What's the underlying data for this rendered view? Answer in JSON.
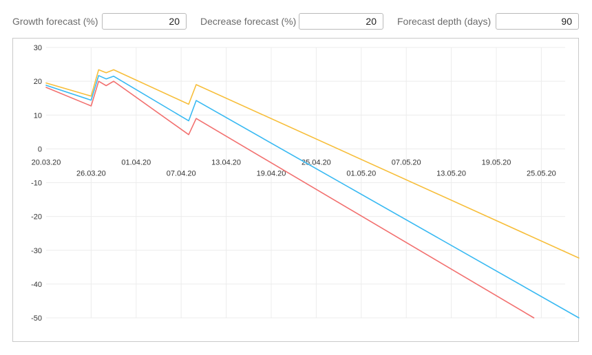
{
  "controls": {
    "growth": {
      "label": "Growth forecast (%)",
      "value": "20"
    },
    "decrease": {
      "label": "Decrease forecast (%)",
      "value": "20"
    },
    "depth": {
      "label": "Forecast depth (days)",
      "value": "90"
    }
  },
  "chart_data": {
    "type": "line",
    "title": "",
    "xlabel": "",
    "ylabel": "",
    "ylim": [
      -50,
      30
    ],
    "y_ticks": [
      30,
      20,
      10,
      0,
      -10,
      -20,
      -30,
      -40,
      -50
    ],
    "x_tick_labels": [
      "20.03.20",
      "26.03.20",
      "01.04.20",
      "07.04.20",
      "13.04.20",
      "19.04.20",
      "25.04.20",
      "01.05.20",
      "07.05.20",
      "13.05.20",
      "19.05.20",
      "25.05.20"
    ],
    "x_tick_dates": [
      "2020-03-20",
      "2020-03-26",
      "2020-04-01",
      "2020-04-07",
      "2020-04-13",
      "2020-04-19",
      "2020-04-25",
      "2020-05-01",
      "2020-05-07",
      "2020-05-13",
      "2020-05-19",
      "2020-05-25"
    ],
    "grid": true,
    "series": [
      {
        "color": "#f7be3a",
        "points": [
          {
            "x": "2020-03-20",
            "y": 19.5
          },
          {
            "x": "2020-03-26",
            "y": 15.6
          },
          {
            "x": "2020-03-27",
            "y": 23.4
          },
          {
            "x": "2020-03-28",
            "y": 22.5
          },
          {
            "x": "2020-03-29",
            "y": 23.4
          },
          {
            "x": "2020-04-08",
            "y": 13.2
          },
          {
            "x": "2020-04-09",
            "y": 19.0
          },
          {
            "x": "2020-05-30",
            "y": -32.3
          }
        ]
      },
      {
        "color": "#38b9f2",
        "points": [
          {
            "x": "2020-03-20",
            "y": 18.8
          },
          {
            "x": "2020-03-26",
            "y": 14.4
          },
          {
            "x": "2020-03-27",
            "y": 21.7
          },
          {
            "x": "2020-03-28",
            "y": 20.7
          },
          {
            "x": "2020-03-29",
            "y": 21.5
          },
          {
            "x": "2020-04-08",
            "y": 8.3
          },
          {
            "x": "2020-04-09",
            "y": 14.3
          },
          {
            "x": "2020-05-30",
            "y": -50.0
          }
        ]
      },
      {
        "color": "#f2706f",
        "points": [
          {
            "x": "2020-03-20",
            "y": 18.2
          },
          {
            "x": "2020-03-26",
            "y": 12.7
          },
          {
            "x": "2020-03-27",
            "y": 20.0
          },
          {
            "x": "2020-03-28",
            "y": 18.7
          },
          {
            "x": "2020-03-29",
            "y": 20.0
          },
          {
            "x": "2020-04-08",
            "y": 4.2
          },
          {
            "x": "2020-04-09",
            "y": 9.0
          },
          {
            "x": "2020-05-24",
            "y": -50.0
          }
        ]
      }
    ]
  }
}
